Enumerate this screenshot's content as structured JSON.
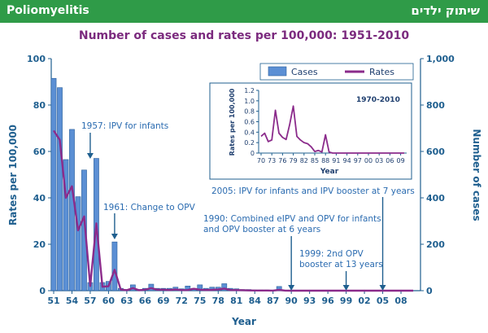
{
  "header": {
    "title": "Poliomyelitis",
    "hebrew_title": "שיתוק ילדים",
    "color": "#2f9b48"
  },
  "chart_data": {
    "type": "bar+line",
    "title": "Number of cases and rates per 100,000: 1951-2010",
    "xlabel": "Year",
    "ylabel_left": "Rates per 100,000",
    "ylabel_right": "Number of cases",
    "ylim_left": [
      0,
      100
    ],
    "ylim_right": [
      0,
      1000
    ],
    "yticks_left": [
      "0",
      "20",
      "40",
      "60",
      "80",
      "100"
    ],
    "yticks_right": [
      "0",
      "200",
      "400",
      "600",
      "800",
      "1,000"
    ],
    "xticks": [
      "51",
      "54",
      "57",
      "60",
      "63",
      "66",
      "69",
      "72",
      "75",
      "78",
      "81",
      "84",
      "87",
      "90",
      "93",
      "96",
      "99",
      "02",
      "05",
      "08"
    ],
    "legend": [
      "Cases",
      "Rates"
    ],
    "legend_position": "top-right",
    "years": [
      1951,
      1952,
      1953,
      1954,
      1955,
      1956,
      1957,
      1958,
      1959,
      1960,
      1961,
      1962,
      1963,
      1964,
      1965,
      1966,
      1967,
      1968,
      1969,
      1970,
      1971,
      1972,
      1973,
      1974,
      1975,
      1976,
      1977,
      1978,
      1979,
      1980,
      1981,
      1982,
      1983,
      1984,
      1985,
      1986,
      1987,
      1988,
      1989,
      1990,
      1991,
      1992,
      1993,
      1994,
      1995,
      1996,
      1997,
      1998,
      1999,
      2000,
      2001,
      2002,
      2003,
      2004,
      2005,
      2006,
      2007,
      2008,
      2009,
      2010
    ],
    "series": [
      {
        "name": "Cases",
        "color": "#5b8fd4",
        "values": [
          915,
          875,
          565,
          695,
          405,
          520,
          35,
          570,
          35,
          40,
          210,
          10,
          5,
          25,
          5,
          10,
          28,
          10,
          10,
          10,
          15,
          8,
          20,
          10,
          25,
          10,
          15,
          15,
          30,
          10,
          8,
          5,
          5,
          3,
          3,
          3,
          2,
          18,
          2,
          0,
          0,
          0,
          0,
          0,
          0,
          0,
          0,
          0,
          0,
          0,
          0,
          0,
          0,
          0,
          0,
          0,
          0,
          0,
          0,
          0
        ]
      },
      {
        "name": "Rates",
        "color": "#8b2b8b",
        "values": [
          69,
          65,
          40,
          45,
          26,
          32,
          2,
          29,
          1.7,
          1.9,
          9,
          0.5,
          0.2,
          1.1,
          0.2,
          0.4,
          1.1,
          0.4,
          0.4,
          0.3,
          0.5,
          0.25,
          0.3,
          0.8,
          0.4,
          0.3,
          0.35,
          0.5,
          0.9,
          0.3,
          0.25,
          0.2,
          0.1,
          0.05,
          0.05,
          0.05,
          0.02,
          0.35,
          0.02,
          0,
          0,
          0,
          0,
          0,
          0,
          0,
          0,
          0,
          0,
          0,
          0,
          0,
          0,
          0,
          0,
          0,
          0,
          0,
          0,
          0
        ]
      }
    ],
    "annotations": [
      {
        "text": "1957: IPV for infants",
        "year": 1957
      },
      {
        "text": "1961: Change to OPV",
        "year": 1961
      },
      {
        "text": "2005: IPV for infants and IPV booster at 7 years",
        "year": 2005
      },
      {
        "text": [
          "1990: Combined eIPV and OPV for infants",
          "and OPV booster at 6 years"
        ],
        "year": 1990
      },
      {
        "text": [
          "1999: 2nd OPV",
          "booster at 13 years"
        ],
        "year": 1999
      }
    ],
    "inset": {
      "title": "1970-2010",
      "xlabel": "Year",
      "ylabel": "Rates per 100,000",
      "ylim": [
        0,
        1.2
      ],
      "yticks": [
        "0",
        "0.2",
        "0.4",
        "0.6",
        "0.8",
        "1.0",
        "1.2"
      ],
      "xticks": [
        "70",
        "73",
        "76",
        "79",
        "82",
        "85",
        "88",
        "91",
        "94",
        "97",
        "00",
        "03",
        "06",
        "09"
      ],
      "years": [
        1970,
        1971,
        1972,
        1973,
        1974,
        1975,
        1976,
        1977,
        1978,
        1979,
        1980,
        1981,
        1982,
        1983,
        1984,
        1985,
        1986,
        1987,
        1988,
        1989,
        1990,
        1991,
        1992,
        1993,
        1994,
        1995,
        1996,
        1997,
        1998,
        1999,
        2000,
        2001,
        2002,
        2003,
        2004,
        2005,
        2006,
        2007,
        2008,
        2009,
        2010
      ],
      "values": [
        0.32,
        0.38,
        0.22,
        0.25,
        0.82,
        0.38,
        0.3,
        0.26,
        0.55,
        0.9,
        0.32,
        0.25,
        0.2,
        0.18,
        0.12,
        0.03,
        0.05,
        0.02,
        0.35,
        0.02,
        0,
        0,
        0,
        0,
        0,
        0,
        0,
        0,
        0,
        0,
        0,
        0,
        0,
        0,
        0,
        0,
        0,
        0,
        0,
        0,
        0
      ]
    }
  }
}
